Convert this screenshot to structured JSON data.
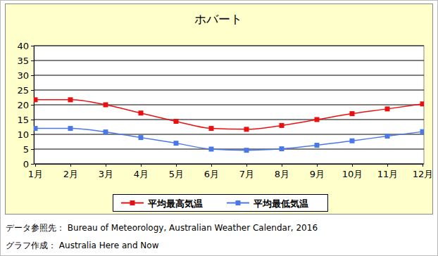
{
  "chart_data": {
    "type": "line",
    "title": "ホバート",
    "categories": [
      "1月",
      "2月",
      "3月",
      "4月",
      "5月",
      "6月",
      "7月",
      "8月",
      "9月",
      "10月",
      "11月",
      "12月"
    ],
    "series": [
      {
        "name": "平均最高気温",
        "color": "#e81010",
        "marker": "square",
        "line_style": "smooth",
        "values": [
          21.7,
          21.7,
          20.0,
          17.2,
          14.4,
          12.0,
          11.7,
          13.0,
          15.0,
          17.0,
          18.6,
          20.3
        ]
      },
      {
        "name": "平均最低気温",
        "color": "#4a78e6",
        "marker": "square",
        "line_style": "smooth",
        "values": [
          12.0,
          12.0,
          10.8,
          8.9,
          7.0,
          5.0,
          4.6,
          5.1,
          6.3,
          7.8,
          9.4,
          10.9
        ]
      }
    ],
    "ylim": [
      0,
      40
    ],
    "yticks": [
      0,
      5,
      10,
      15,
      20,
      25,
      30,
      35,
      40
    ],
    "grid": true,
    "legend": "bottom",
    "annotations": [
      "データ参照先： Bureau of Meteorology, Australian Weather Calendar, 2016",
      "グラフ作成： Australia Here and Now"
    ]
  }
}
